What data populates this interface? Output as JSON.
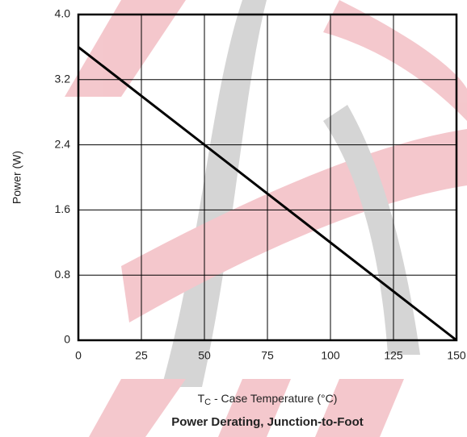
{
  "chart_data": {
    "type": "line",
    "title": "Power Derating, Junction-to-Foot",
    "ylabel": "Power (W)",
    "xlabel_parts": [
      "T",
      "C",
      " - Case Temperature (°C)"
    ],
    "x": [
      0,
      150
    ],
    "series": [
      {
        "name": "Power",
        "color": "#000000",
        "values": [
          3.6,
          0
        ]
      }
    ],
    "xlim": [
      0,
      150
    ],
    "xticks": [
      0,
      25,
      50,
      75,
      100,
      125,
      150
    ],
    "ylim": [
      0,
      4
    ],
    "yticks": [
      0,
      0.8,
      1.6,
      2.4,
      3.2,
      {
        "value": 4,
        "label": "4.0"
      }
    ],
    "grid": true
  }
}
